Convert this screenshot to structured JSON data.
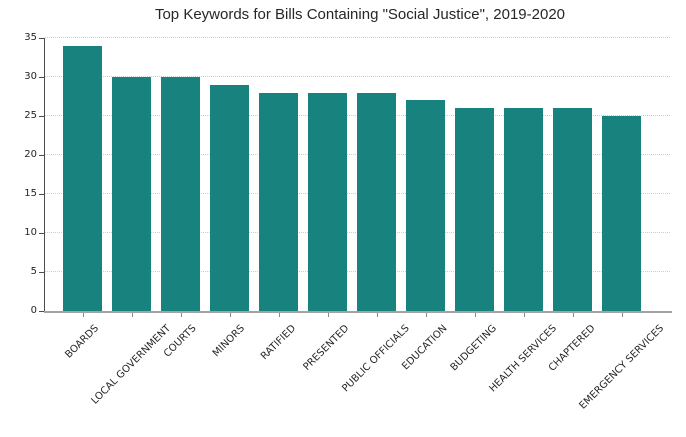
{
  "title": "Top Keywords for Bills Containing \"Social Justice\", 2019-2020",
  "chart_data": {
    "type": "bar",
    "title": "Top Keywords for Bills Containing \"Social Justice\", 2019-2020",
    "categories": [
      "BOARDS",
      "LOCAL GOVERNMENT",
      "COURTS",
      "MINORS",
      "RATIFIED",
      "PRESENTED",
      "PUBLIC OFFICIALS",
      "EDUCATION",
      "BUDGETING",
      "HEALTH SERVICES",
      "CHAPTERED",
      "EMERGENCY SERVICES"
    ],
    "values": [
      34,
      30,
      30,
      29,
      28,
      28,
      28,
      27,
      26,
      26,
      26,
      25
    ],
    "xlabel": "",
    "ylabel": "",
    "ylim": [
      0,
      35
    ],
    "yticks": [
      0,
      5,
      10,
      15,
      20,
      25,
      30,
      35
    ],
    "grid": "horizontal dotted, axis below bars",
    "legend": "none",
    "bar_color": "#17827E",
    "background_color": "#ffffff",
    "text_color": "#262626",
    "gridline_color": "#cccccc",
    "left_spine_color": "#4d4d4d",
    "bottom_spine_color": "#a3a3a3"
  }
}
